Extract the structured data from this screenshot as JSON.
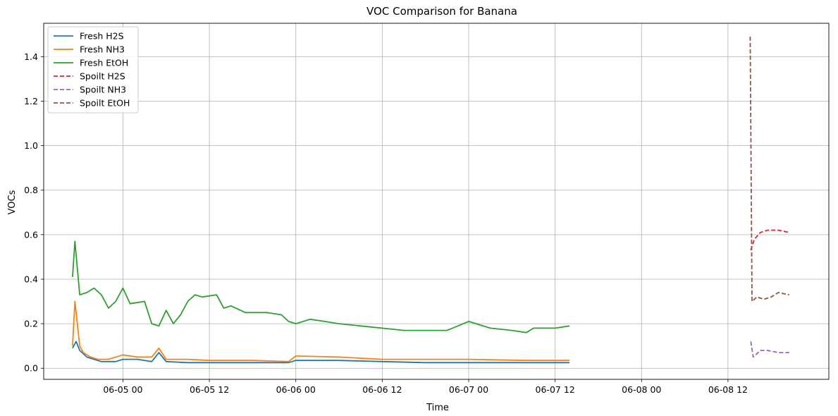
{
  "chart_data": {
    "type": "line",
    "title": "VOC Comparison for Banana",
    "xlabel": "Time",
    "ylabel": "VOCs",
    "x_unit": "datetime",
    "xlim": [
      "2024-06-04 13:00",
      "2024-06-09 02:00"
    ],
    "ylim": [
      -0.05,
      1.55
    ],
    "x_ticks": [
      {
        "value": "2024-06-05 00:00",
        "label": "06-05 00"
      },
      {
        "value": "2024-06-05 12:00",
        "label": "06-05 12"
      },
      {
        "value": "2024-06-06 00:00",
        "label": "06-06 00"
      },
      {
        "value": "2024-06-06 12:00",
        "label": "06-06 12"
      },
      {
        "value": "2024-06-07 00:00",
        "label": "06-07 00"
      },
      {
        "value": "2024-06-07 12:00",
        "label": "06-07 12"
      },
      {
        "value": "2024-06-08 00:00",
        "label": "06-08 00"
      },
      {
        "value": "2024-06-08 12:00",
        "label": "06-08 12"
      }
    ],
    "y_ticks": [
      {
        "value": 0.0,
        "label": "0.0"
      },
      {
        "value": 0.2,
        "label": "0.2"
      },
      {
        "value": 0.4,
        "label": "0.4"
      },
      {
        "value": 0.6,
        "label": "0.6"
      },
      {
        "value": 0.8,
        "label": "0.8"
      },
      {
        "value": 1.0,
        "label": "1.0"
      },
      {
        "value": 1.2,
        "label": "1.2"
      },
      {
        "value": 1.4,
        "label": "1.4"
      }
    ],
    "grid": true,
    "legend_position": "top-left",
    "series": [
      {
        "name": "Fresh H2S",
        "color": "#1f77b4",
        "dash": "solid",
        "points": [
          [
            "2024-06-04 17:00",
            0.09
          ],
          [
            "2024-06-04 17:30",
            0.12
          ],
          [
            "2024-06-04 18:00",
            0.08
          ],
          [
            "2024-06-04 19:00",
            0.05
          ],
          [
            "2024-06-04 20:00",
            0.04
          ],
          [
            "2024-06-04 21:00",
            0.03
          ],
          [
            "2024-06-04 23:00",
            0.03
          ],
          [
            "2024-06-05 00:00",
            0.04
          ],
          [
            "2024-06-05 02:00",
            0.04
          ],
          [
            "2024-06-05 04:00",
            0.03
          ],
          [
            "2024-06-05 05:00",
            0.07
          ],
          [
            "2024-06-05 06:00",
            0.03
          ],
          [
            "2024-06-05 09:00",
            0.025
          ],
          [
            "2024-06-05 12:00",
            0.025
          ],
          [
            "2024-06-05 18:00",
            0.025
          ],
          [
            "2024-06-05 23:00",
            0.025
          ],
          [
            "2024-06-06 00:00",
            0.035
          ],
          [
            "2024-06-06 06:00",
            0.035
          ],
          [
            "2024-06-06 12:00",
            0.03
          ],
          [
            "2024-06-06 18:00",
            0.025
          ],
          [
            "2024-06-07 00:00",
            0.025
          ],
          [
            "2024-06-07 08:00",
            0.025
          ],
          [
            "2024-06-07 14:00",
            0.025
          ]
        ]
      },
      {
        "name": "Fresh NH3",
        "color": "#ff7f0e",
        "dash": "solid",
        "points": [
          [
            "2024-06-04 17:00",
            0.1
          ],
          [
            "2024-06-04 17:20",
            0.3
          ],
          [
            "2024-06-04 17:40",
            0.2
          ],
          [
            "2024-06-04 18:00",
            0.1
          ],
          [
            "2024-06-04 18:30",
            0.07
          ],
          [
            "2024-06-04 19:30",
            0.05
          ],
          [
            "2024-06-04 20:30",
            0.04
          ],
          [
            "2024-06-04 22:00",
            0.04
          ],
          [
            "2024-06-05 00:00",
            0.06
          ],
          [
            "2024-06-05 02:00",
            0.05
          ],
          [
            "2024-06-05 04:00",
            0.05
          ],
          [
            "2024-06-05 05:00",
            0.09
          ],
          [
            "2024-06-05 06:00",
            0.04
          ],
          [
            "2024-06-05 09:00",
            0.04
          ],
          [
            "2024-06-05 12:00",
            0.035
          ],
          [
            "2024-06-05 18:00",
            0.035
          ],
          [
            "2024-06-05 23:00",
            0.03
          ],
          [
            "2024-06-06 00:00",
            0.055
          ],
          [
            "2024-06-06 06:00",
            0.05
          ],
          [
            "2024-06-06 12:00",
            0.04
          ],
          [
            "2024-06-06 18:00",
            0.04
          ],
          [
            "2024-06-07 00:00",
            0.04
          ],
          [
            "2024-06-07 08:00",
            0.035
          ],
          [
            "2024-06-07 14:00",
            0.035
          ]
        ]
      },
      {
        "name": "Fresh EtOH",
        "color": "#2ca02c",
        "dash": "solid",
        "points": [
          [
            "2024-06-04 17:00",
            0.41
          ],
          [
            "2024-06-04 17:20",
            0.57
          ],
          [
            "2024-06-04 17:40",
            0.45
          ],
          [
            "2024-06-04 18:00",
            0.33
          ],
          [
            "2024-06-04 19:00",
            0.34
          ],
          [
            "2024-06-04 20:00",
            0.36
          ],
          [
            "2024-06-04 21:00",
            0.33
          ],
          [
            "2024-06-04 22:00",
            0.27
          ],
          [
            "2024-06-04 23:00",
            0.3
          ],
          [
            "2024-06-05 00:00",
            0.36
          ],
          [
            "2024-06-05 01:00",
            0.29
          ],
          [
            "2024-06-05 03:00",
            0.3
          ],
          [
            "2024-06-05 04:00",
            0.2
          ],
          [
            "2024-06-05 05:00",
            0.19
          ],
          [
            "2024-06-05 06:00",
            0.26
          ],
          [
            "2024-06-05 07:00",
            0.2
          ],
          [
            "2024-06-05 08:00",
            0.24
          ],
          [
            "2024-06-05 09:00",
            0.3
          ],
          [
            "2024-06-05 10:00",
            0.33
          ],
          [
            "2024-06-05 11:00",
            0.32
          ],
          [
            "2024-06-05 13:00",
            0.33
          ],
          [
            "2024-06-05 14:00",
            0.27
          ],
          [
            "2024-06-05 15:00",
            0.28
          ],
          [
            "2024-06-05 17:00",
            0.25
          ],
          [
            "2024-06-05 20:00",
            0.25
          ],
          [
            "2024-06-05 22:00",
            0.24
          ],
          [
            "2024-06-05 23:00",
            0.21
          ],
          [
            "2024-06-06 00:00",
            0.2
          ],
          [
            "2024-06-06 02:00",
            0.22
          ],
          [
            "2024-06-06 04:00",
            0.21
          ],
          [
            "2024-06-06 06:00",
            0.2
          ],
          [
            "2024-06-06 09:00",
            0.19
          ],
          [
            "2024-06-06 12:00",
            0.18
          ],
          [
            "2024-06-06 15:00",
            0.17
          ],
          [
            "2024-06-06 18:00",
            0.17
          ],
          [
            "2024-06-06 21:00",
            0.17
          ],
          [
            "2024-06-07 00:00",
            0.21
          ],
          [
            "2024-06-07 03:00",
            0.18
          ],
          [
            "2024-06-07 06:00",
            0.17
          ],
          [
            "2024-06-07 08:00",
            0.16
          ],
          [
            "2024-06-07 09:00",
            0.18
          ],
          [
            "2024-06-07 12:00",
            0.18
          ],
          [
            "2024-06-07 14:00",
            0.19
          ]
        ]
      },
      {
        "name": "Spoilt H2S",
        "color": "#d62728",
        "dash": "dashed",
        "points": [
          [
            "2024-06-08 15:10",
            0.53
          ],
          [
            "2024-06-08 15:40",
            0.58
          ],
          [
            "2024-06-08 16:30",
            0.61
          ],
          [
            "2024-06-08 17:30",
            0.62
          ],
          [
            "2024-06-08 19:00",
            0.62
          ],
          [
            "2024-06-08 20:30",
            0.61
          ]
        ]
      },
      {
        "name": "Spoilt NH3",
        "color": "#9467bd",
        "dash": "dashed",
        "points": [
          [
            "2024-06-08 15:10",
            0.12
          ],
          [
            "2024-06-08 15:30",
            0.05
          ],
          [
            "2024-06-08 16:30",
            0.08
          ],
          [
            "2024-06-08 17:30",
            0.08
          ],
          [
            "2024-06-08 19:00",
            0.07
          ],
          [
            "2024-06-08 20:30",
            0.07
          ]
        ]
      },
      {
        "name": "Spoilt EtOH",
        "color": "#8c564b",
        "dash": "dashed",
        "points": [
          [
            "2024-06-08 15:05",
            1.49
          ],
          [
            "2024-06-08 15:20",
            0.3
          ],
          [
            "2024-06-08 16:00",
            0.32
          ],
          [
            "2024-06-08 17:00",
            0.31
          ],
          [
            "2024-06-08 18:00",
            0.32
          ],
          [
            "2024-06-08 19:00",
            0.34
          ],
          [
            "2024-06-08 20:30",
            0.33
          ]
        ]
      }
    ]
  }
}
